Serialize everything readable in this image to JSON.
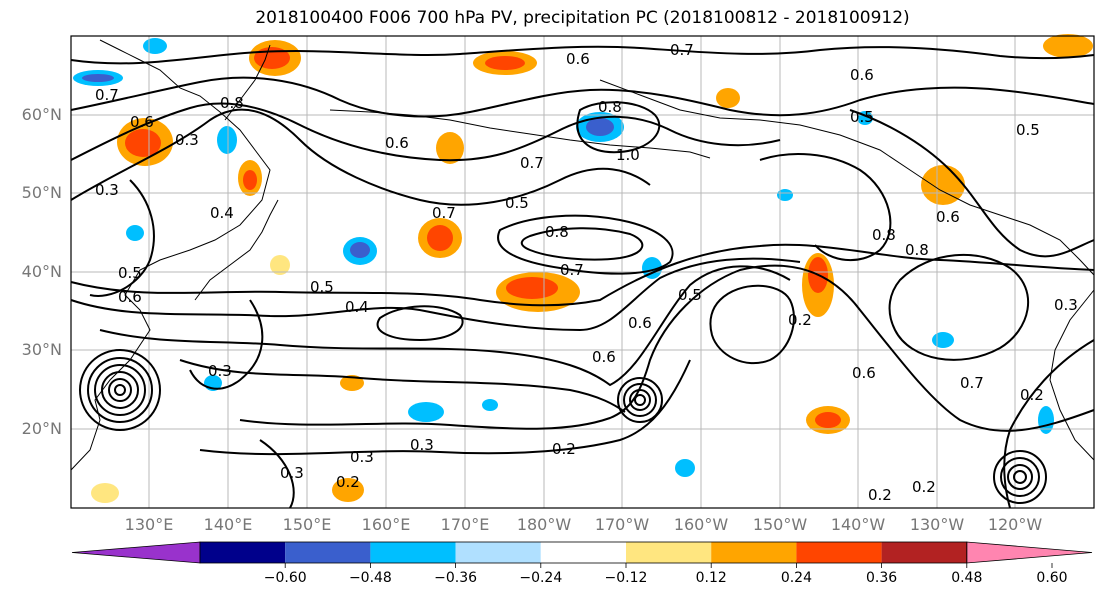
{
  "title": "2018100400 F006 700 hPa PV, precipitation PC (2018100812 - 2018100912)",
  "lat_labels": [
    "60°N",
    "50°N",
    "40°N",
    "30°N",
    "20°N"
  ],
  "lon_labels": [
    "130°E",
    "140°E",
    "150°E",
    "160°E",
    "170°E",
    "180°W",
    "170°W",
    "160°W",
    "150°W",
    "140°W",
    "130°W",
    "120°W"
  ],
  "contour_labels": [
    "0.7",
    "0.6",
    "0.3",
    "0.8",
    "0.4",
    "0.3",
    "0.5",
    "0.6",
    "0.5",
    "0.4",
    "0.6",
    "0.7",
    "0.8",
    "0.7",
    "0.5",
    "0.7",
    "1.0",
    "0.8",
    "0.6",
    "0.7",
    "0.5",
    "0.6",
    "0.5",
    "0.8",
    "0.8",
    "0.6",
    "0.6",
    "0.2",
    "0.6",
    "0.3",
    "0.3",
    "0.6",
    "0.7",
    "0.2",
    "0.3",
    "0.3",
    "0.2",
    "0.2",
    "0.2",
    "0.5",
    "0.2",
    "0.3"
  ],
  "colorbar": {
    "ticks": [
      "−0.60",
      "−0.48",
      "−0.36",
      "−0.24",
      "−0.12",
      "0.12",
      "0.24",
      "0.36",
      "0.48",
      "0.60"
    ],
    "colors": [
      "#9932cc",
      "#00008b",
      "#3a5fcd",
      "#00bfff",
      "#b0e0ff",
      "#ffffff",
      "#ffe680",
      "#ffa500",
      "#ff4500",
      "#b22222",
      "#ff85b0"
    ]
  },
  "colors": {
    "orange": "#ffa500",
    "red_orange": "#ff4500",
    "light_yellow": "#ffe680",
    "sky_blue": "#00bfff",
    "light_blue": "#b0e0ff",
    "royal_blue": "#3a5fcd"
  }
}
